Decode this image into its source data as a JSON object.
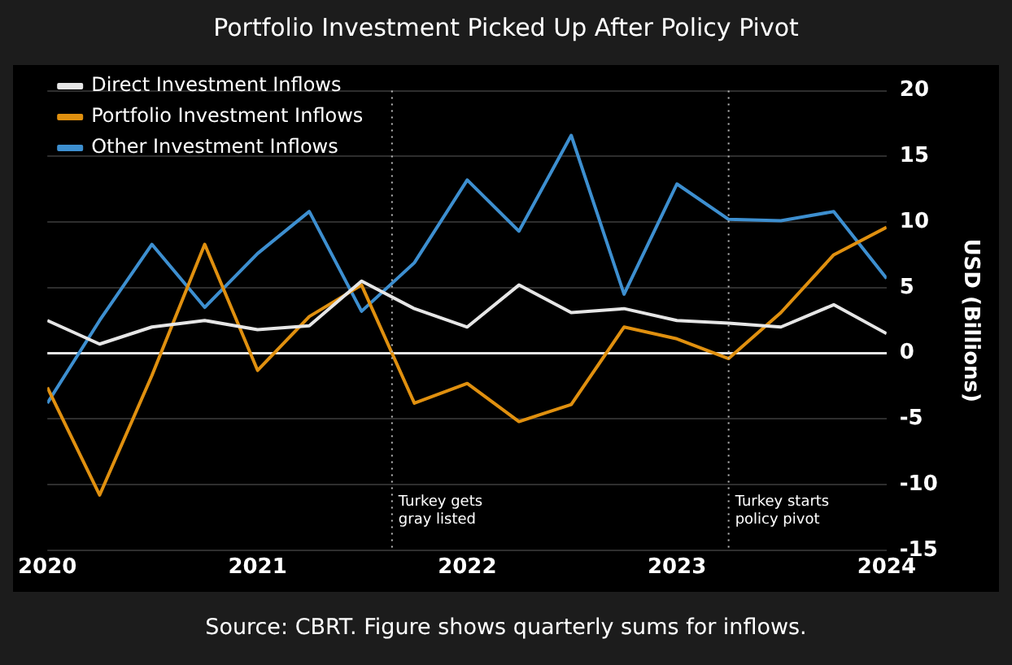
{
  "chart_data": {
    "type": "line",
    "title": "Portfolio Investment Picked Up After Policy Pivot",
    "ylabel": "USD (Billions)",
    "annotations": [
      "Source: CBRT. Figure shows quarterly sums for inflows."
    ],
    "x": [
      "2020-01",
      "2020-04",
      "2020-07",
      "2020-10",
      "2021-01",
      "2021-04",
      "2021-07",
      "2021-10",
      "2022-01",
      "2022-04",
      "2022-07",
      "2022-10",
      "2023-01",
      "2023-04",
      "2023-07",
      "2023-10",
      "2024-01"
    ],
    "series": [
      {
        "name": "Direct Investment Inflows",
        "color": "#e6e6e6",
        "values": [
          2.5,
          0.7,
          2.0,
          2.5,
          1.8,
          2.1,
          5.5,
          3.4,
          2.0,
          5.2,
          3.1,
          3.4,
          2.5,
          2.3,
          2.0,
          3.7,
          1.5
        ]
      },
      {
        "name": "Portfolio Investment Inflows",
        "color": "#e0900f",
        "values": [
          -2.6,
          -10.8,
          -1.7,
          8.3,
          -1.3,
          2.8,
          5.2,
          -3.8,
          -2.3,
          -5.2,
          -3.9,
          2.0,
          1.1,
          -0.4,
          3.1,
          7.5,
          9.6
        ]
      },
      {
        "name": "Other Investment Inflows",
        "color": "#3d8fd0",
        "values": [
          -3.8,
          2.5,
          8.3,
          3.5,
          7.6,
          10.8,
          3.2,
          6.9,
          13.2,
          9.3,
          16.6,
          4.5,
          12.9,
          10.2,
          10.1,
          10.8,
          5.7
        ]
      }
    ],
    "xlim": [
      "2020-01",
      "2024-01"
    ],
    "xticks": [
      {
        "value": "2020",
        "label": "2020"
      },
      {
        "value": "2021",
        "label": "2021"
      },
      {
        "value": "2022",
        "label": "2022"
      },
      {
        "value": "2023",
        "label": "2023"
      },
      {
        "value": "2024",
        "label": "2024"
      }
    ],
    "ylim": [
      -15,
      20
    ],
    "yticks": [
      -15,
      -10,
      -5,
      0,
      5,
      10,
      15,
      20
    ],
    "ref_lines": [
      {
        "axis": "x",
        "value": "2021-08-23",
        "label": "Turkey gets\ngray listed",
        "color": "#bbbbbb",
        "line_style": "dotted"
      },
      {
        "axis": "x",
        "value": "2023-04",
        "label": "Turkey starts\npolicy pivot",
        "color": "#bbbbbb",
        "line_style": "dotted"
      }
    ],
    "grid": "y",
    "legend": "top left",
    "marker": "none",
    "line_style": "solid"
  }
}
